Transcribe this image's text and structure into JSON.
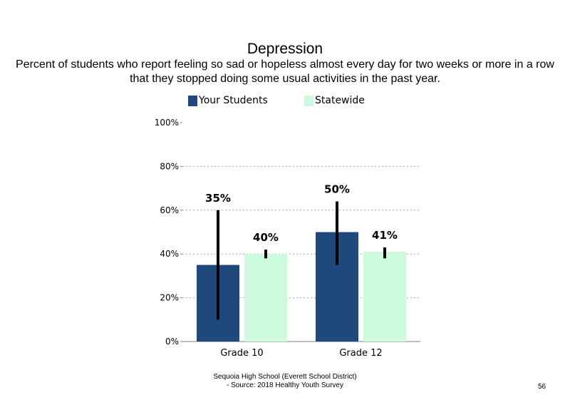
{
  "chart_data": {
    "type": "bar",
    "title": "Depression",
    "subtitle": "Percent of students who report feeling so sad or hopeless almost every day for two weeks or more in a row that they stopped doing some usual activities in the past year.",
    "categories": [
      "Grade 10",
      "Grade 12"
    ],
    "series": [
      {
        "name": "Your Students",
        "color": "#1f497d",
        "values": [
          35,
          50
        ],
        "labels": [
          "35%",
          "50%"
        ],
        "error_low": [
          10,
          35
        ],
        "error_high": [
          60,
          64
        ]
      },
      {
        "name": "Statewide",
        "color": "#ccfadc",
        "values": [
          40,
          41
        ],
        "labels": [
          "40%",
          "41%"
        ],
        "error_low": [
          38,
          38
        ],
        "error_high": [
          42,
          43
        ]
      }
    ],
    "yticks": [
      "0%",
      "20%",
      "40%",
      "60%",
      "80%",
      "100%"
    ],
    "ylim": [
      0,
      100
    ],
    "grid": "dotted at 20%, 40%, 60%, 80%",
    "legend": "top-center"
  },
  "footer": {
    "line1": "Sequoia High School (Everett School District)",
    "line2": "- Source: 2018 Healthy Youth Survey"
  },
  "page_number": "56"
}
